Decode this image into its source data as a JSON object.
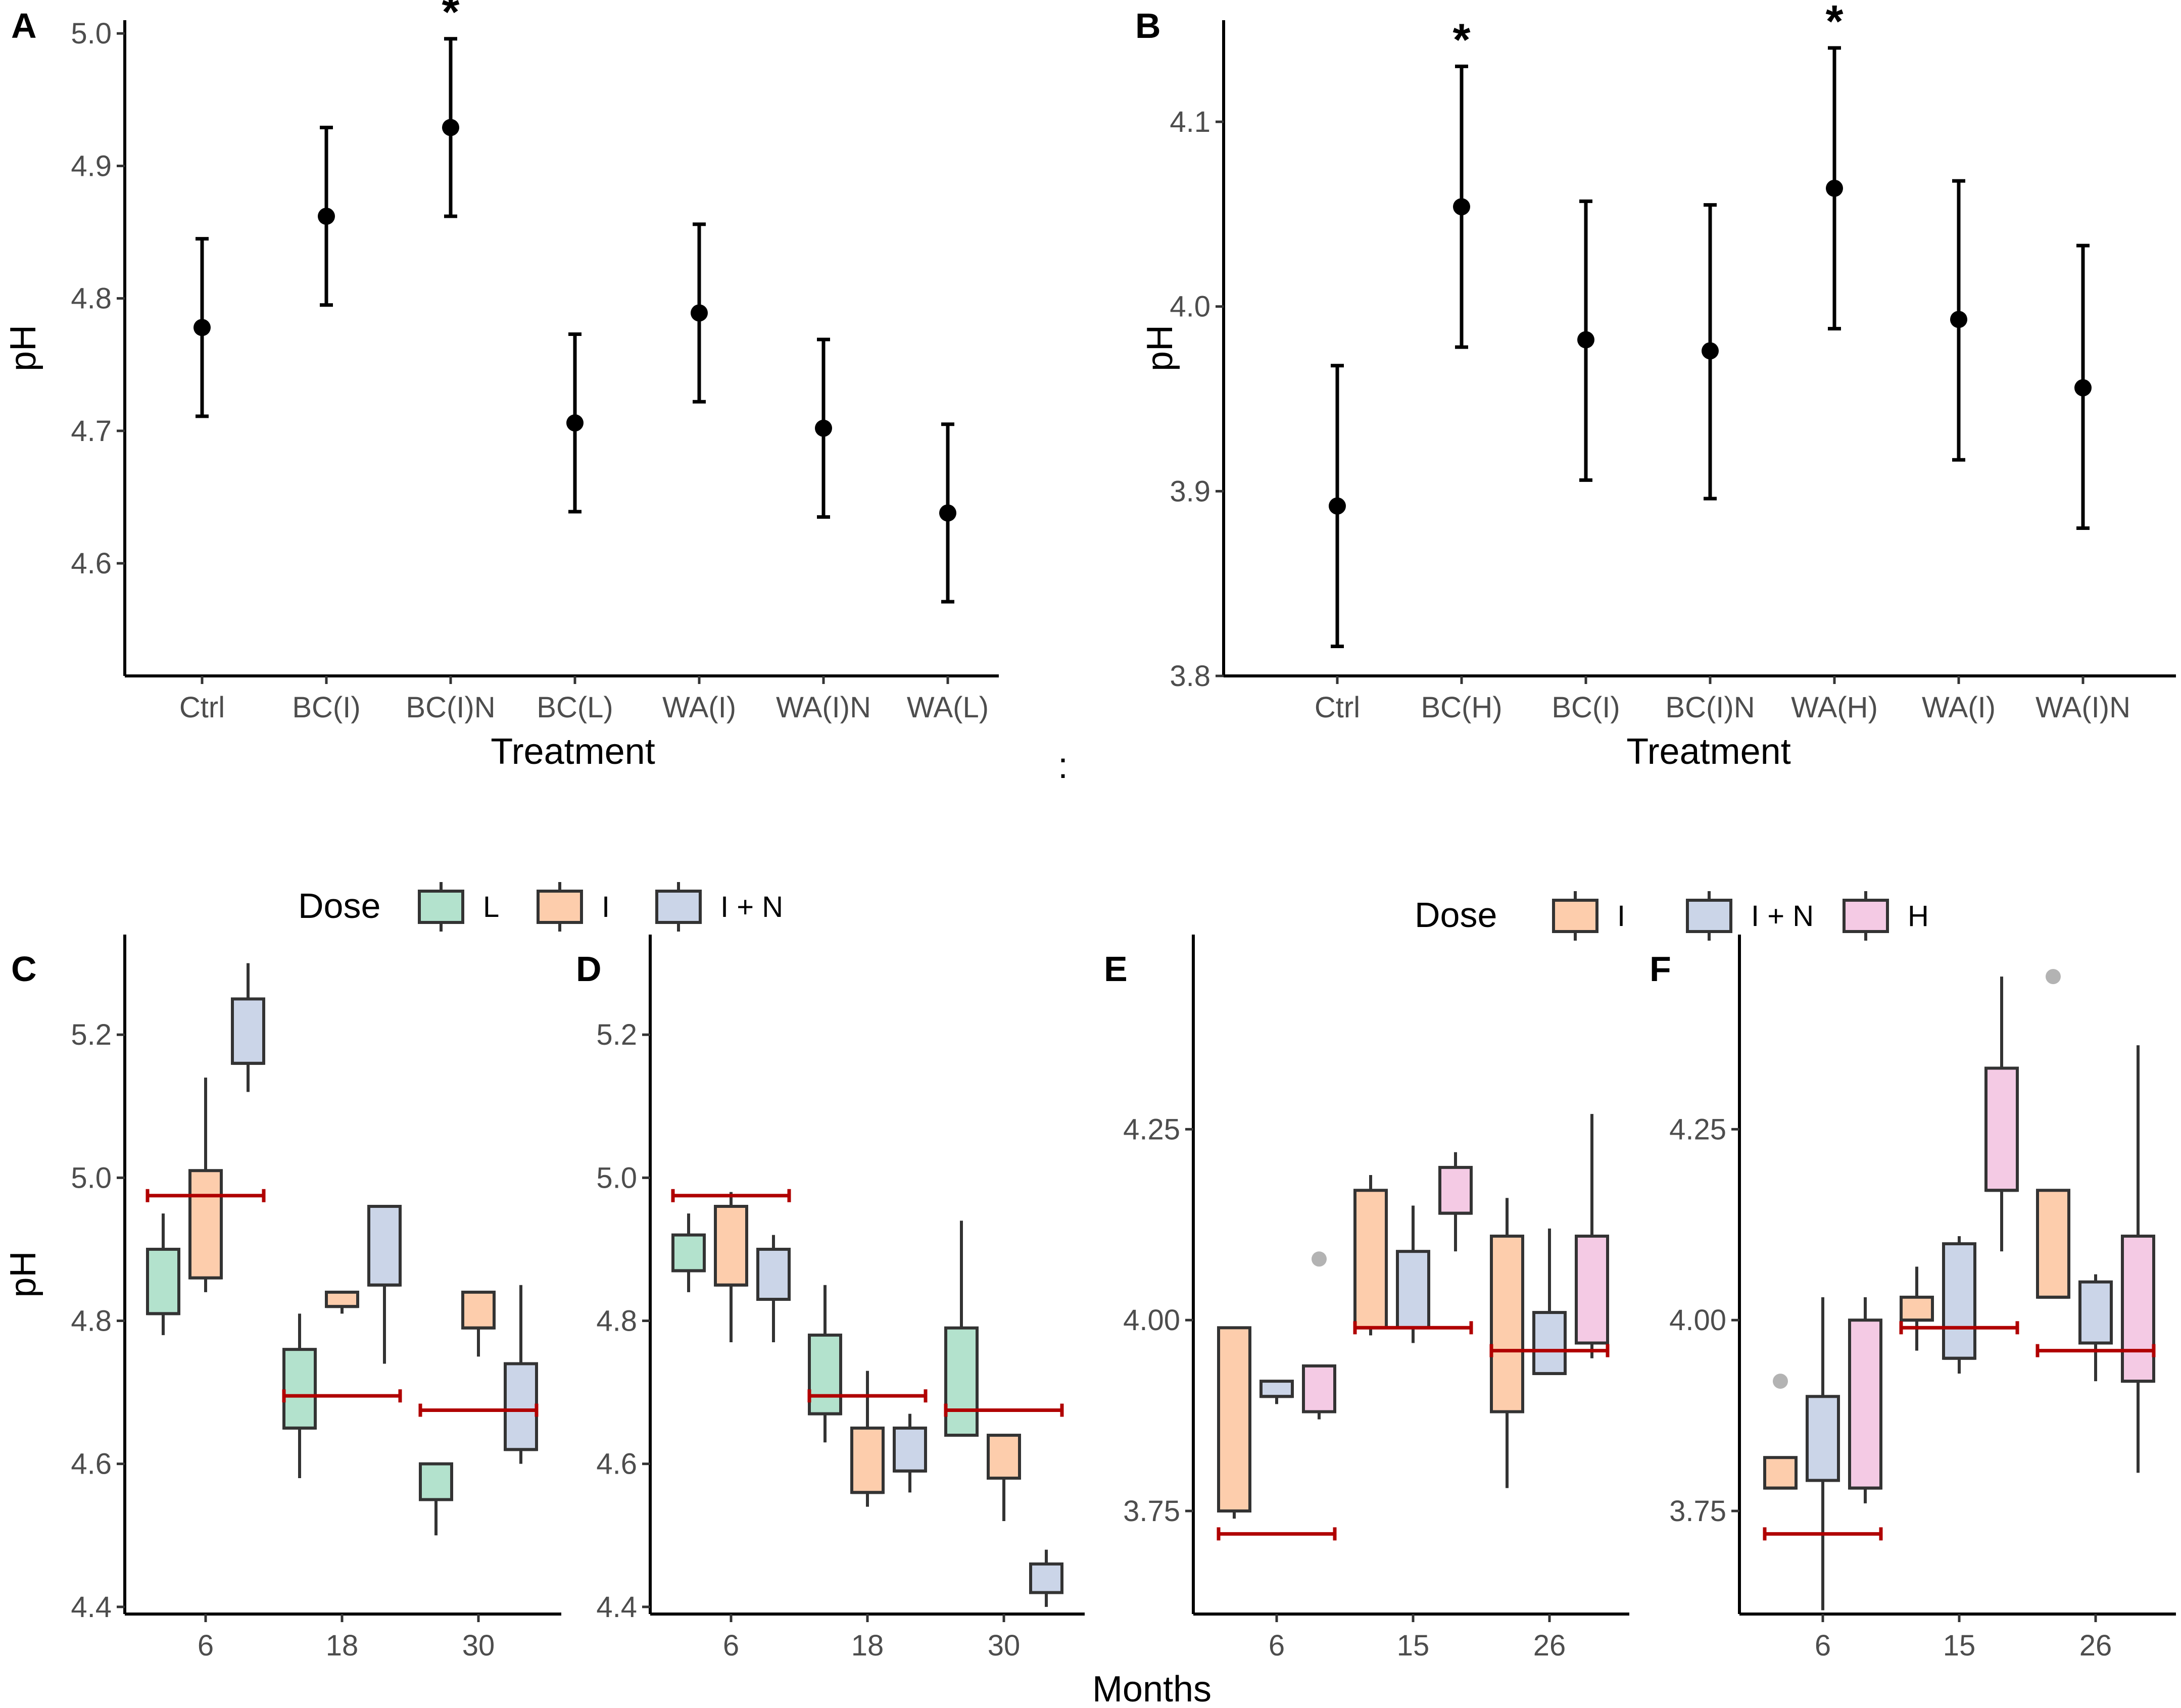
{
  "colors": {
    "L": "#b3e2cd",
    "I": "#fdcdac",
    "I + N": "#cbd5e8",
    "H": "#f4cae4",
    "reference_line": "#b00000",
    "outlier": "#999999"
  },
  "legend_top_left": {
    "title": "Dose",
    "entries": [
      "L",
      "I",
      "I + N"
    ]
  },
  "legend_top_right": {
    "title": "Dose",
    "entries": [
      "I",
      "I + N",
      "H"
    ]
  },
  "shared_x_title": "Months",
  "stray_mark": ":",
  "chart_data": [
    {
      "panel": "A",
      "type": "scatter",
      "xlabel": "Treatment",
      "ylabel": "pH",
      "categories": [
        "Ctrl",
        "BC(I)",
        "BC(I)N",
        "BC(L)",
        "WA(I)",
        "WA(I)N",
        "WA(L)"
      ],
      "values": [
        4.778,
        4.862,
        4.929,
        4.706,
        4.789,
        4.702,
        4.638
      ],
      "lower": [
        4.711,
        4.795,
        4.862,
        4.639,
        4.722,
        4.635,
        4.571
      ],
      "upper": [
        4.845,
        4.929,
        4.996,
        4.773,
        4.856,
        4.769,
        4.705
      ],
      "significant": [
        "BC(I)N"
      ],
      "ylim": [
        4.515,
        5.01
      ],
      "yticks": [
        "4.6",
        "4.7",
        "4.8",
        "4.9",
        "5.0"
      ]
    },
    {
      "panel": "B",
      "type": "scatter",
      "xlabel": "Treatment",
      "ylabel": "pH",
      "categories": [
        "Ctrl",
        "BC(H)",
        "BC(I)",
        "BC(I)N",
        "WA(H)",
        "WA(I)",
        "WA(I)N"
      ],
      "values": [
        3.892,
        4.054,
        3.982,
        3.976,
        4.064,
        3.993,
        3.956
      ],
      "lower": [
        3.816,
        3.978,
        3.906,
        3.896,
        3.988,
        3.917,
        3.88
      ],
      "upper": [
        3.968,
        4.13,
        4.057,
        4.055,
        4.14,
        4.068,
        4.033
      ],
      "significant": [
        "BC(H)",
        "WA(H)"
      ],
      "ylim": [
        3.8,
        4.155
      ],
      "yticks": [
        "3.8",
        "3.9",
        "4.0",
        "4.1"
      ]
    },
    {
      "panel": "C",
      "type": "box",
      "xlabel": "",
      "ylabel": "pH",
      "categories": [
        "6",
        "18",
        "30"
      ],
      "doses": [
        "L",
        "I",
        "I + N"
      ],
      "ylim": [
        4.39,
        5.34
      ],
      "yticks": [
        "4.4",
        "4.6",
        "4.8",
        "5.0",
        "5.2"
      ],
      "boxes": [
        {
          "month": "6",
          "dose": "L",
          "min": 4.78,
          "q1": 4.81,
          "median": 4.81,
          "q3": 4.9,
          "max": 4.95
        },
        {
          "month": "6",
          "dose": "I",
          "min": 4.84,
          "q1": 4.86,
          "median": 4.86,
          "q3": 5.01,
          "max": 5.14
        },
        {
          "month": "6",
          "dose": "I + N",
          "min": 5.12,
          "q1": 5.16,
          "median": 5.16,
          "q3": 5.25,
          "max": 5.3
        },
        {
          "month": "18",
          "dose": "L",
          "min": 4.58,
          "q1": 4.65,
          "median": 4.65,
          "q3": 4.76,
          "max": 4.81
        },
        {
          "month": "18",
          "dose": "I",
          "min": 4.81,
          "q1": 4.82,
          "median": 4.82,
          "q3": 4.84,
          "max": 4.84
        },
        {
          "month": "18",
          "dose": "I + N",
          "min": 4.74,
          "q1": 4.85,
          "median": 4.85,
          "q3": 4.96,
          "max": 4.96
        },
        {
          "month": "30",
          "dose": "L",
          "min": 4.5,
          "q1": 4.55,
          "median": 4.55,
          "q3": 4.6,
          "max": 4.6
        },
        {
          "month": "30",
          "dose": "I",
          "min": 4.75,
          "q1": 4.79,
          "median": 4.79,
          "q3": 4.84,
          "max": 4.84
        },
        {
          "month": "30",
          "dose": "I + N",
          "min": 4.6,
          "q1": 4.62,
          "median": 4.62,
          "q3": 4.74,
          "max": 4.85
        }
      ],
      "reference": [
        {
          "month": "6",
          "value": 4.975
        },
        {
          "month": "18",
          "value": 4.695
        },
        {
          "month": "30",
          "value": 4.675
        }
      ],
      "outliers": []
    },
    {
      "panel": "D",
      "type": "box",
      "xlabel": "",
      "ylabel": "",
      "categories": [
        "6",
        "18",
        "30"
      ],
      "doses": [
        "L",
        "I",
        "I + N"
      ],
      "ylim": [
        4.39,
        5.34
      ],
      "yticks": [
        "4.4",
        "4.6",
        "4.8",
        "5.0",
        "5.2"
      ],
      "boxes": [
        {
          "month": "6",
          "dose": "L",
          "min": 4.84,
          "q1": 4.87,
          "median": 4.87,
          "q3": 4.92,
          "max": 4.95
        },
        {
          "month": "6",
          "dose": "I",
          "min": 4.77,
          "q1": 4.85,
          "median": 4.85,
          "q3": 4.96,
          "max": 4.98
        },
        {
          "month": "6",
          "dose": "I + N",
          "min": 4.77,
          "q1": 4.83,
          "median": 4.83,
          "q3": 4.9,
          "max": 4.92
        },
        {
          "month": "18",
          "dose": "L",
          "min": 4.63,
          "q1": 4.67,
          "median": 4.67,
          "q3": 4.78,
          "max": 4.85
        },
        {
          "month": "18",
          "dose": "I",
          "min": 4.54,
          "q1": 4.56,
          "median": 4.56,
          "q3": 4.65,
          "max": 4.73
        },
        {
          "month": "18",
          "dose": "I + N",
          "min": 4.56,
          "q1": 4.59,
          "median": 4.59,
          "q3": 4.65,
          "max": 4.67
        },
        {
          "month": "30",
          "dose": "L",
          "min": 4.64,
          "q1": 4.64,
          "median": 4.64,
          "q3": 4.79,
          "max": 4.94
        },
        {
          "month": "30",
          "dose": "I",
          "min": 4.52,
          "q1": 4.58,
          "median": 4.58,
          "q3": 4.64,
          "max": 4.64
        },
        {
          "month": "30",
          "dose": "I + N",
          "min": 4.4,
          "q1": 4.42,
          "median": 4.42,
          "q3": 4.46,
          "max": 4.48
        }
      ],
      "reference": [
        {
          "month": "6",
          "value": 4.975
        },
        {
          "month": "18",
          "value": 4.695
        },
        {
          "month": "30",
          "value": 4.675
        }
      ],
      "outliers": []
    },
    {
      "panel": "E",
      "type": "box",
      "xlabel": "",
      "ylabel": "",
      "categories": [
        "6",
        "15",
        "26"
      ],
      "doses": [
        "I",
        "I + N",
        "H"
      ],
      "ylim": [
        3.615,
        4.505
      ],
      "yticks": [
        "3.75",
        "4.00",
        "4.25"
      ],
      "boxes": [
        {
          "month": "6",
          "dose": "I",
          "min": 3.74,
          "q1": 3.75,
          "median": 3.75,
          "q3": 3.99,
          "max": 3.99
        },
        {
          "month": "6",
          "dose": "I + N",
          "min": 3.89,
          "q1": 3.9,
          "median": 3.9,
          "q3": 3.92,
          "max": 3.92
        },
        {
          "month": "6",
          "dose": "H",
          "min": 3.87,
          "q1": 3.88,
          "median": 3.88,
          "q3": 3.94,
          "max": 3.94
        },
        {
          "month": "15",
          "dose": "I",
          "min": 3.98,
          "q1": 3.99,
          "median": 3.99,
          "q3": 4.17,
          "max": 4.19
        },
        {
          "month": "15",
          "dose": "I + N",
          "min": 3.97,
          "q1": 3.99,
          "median": 3.99,
          "q3": 4.09,
          "max": 4.15
        },
        {
          "month": "15",
          "dose": "H",
          "min": 4.09,
          "q1": 4.14,
          "median": 4.14,
          "q3": 4.2,
          "max": 4.22
        },
        {
          "month": "26",
          "dose": "I",
          "min": 3.78,
          "q1": 3.88,
          "median": 3.88,
          "q3": 4.11,
          "max": 4.16
        },
        {
          "month": "26",
          "dose": "I + N",
          "min": 3.93,
          "q1": 3.93,
          "median": 3.93,
          "q3": 4.01,
          "max": 4.12
        },
        {
          "month": "26",
          "dose": "H",
          "min": 3.95,
          "q1": 3.97,
          "median": 3.97,
          "q3": 4.11,
          "max": 4.27
        }
      ],
      "reference": [
        {
          "month": "6",
          "value": 3.72
        },
        {
          "month": "15",
          "value": 3.99
        },
        {
          "month": "26",
          "value": 3.96
        }
      ],
      "outliers": [
        {
          "month": "6",
          "dose": "H",
          "value": 4.08
        }
      ]
    },
    {
      "panel": "F",
      "type": "box",
      "xlabel": "",
      "ylabel": "",
      "categories": [
        "6",
        "15",
        "26"
      ],
      "doses": [
        "I",
        "I + N",
        "H"
      ],
      "ylim": [
        3.615,
        4.505
      ],
      "yticks": [
        "3.75",
        "4.00",
        "4.25"
      ],
      "boxes": [
        {
          "month": "6",
          "dose": "I",
          "min": 3.78,
          "q1": 3.78,
          "median": 3.78,
          "q3": 3.82,
          "max": 3.82
        },
        {
          "month": "6",
          "dose": "I + N",
          "min": 3.62,
          "q1": 3.79,
          "median": 3.79,
          "q3": 3.9,
          "max": 4.03
        },
        {
          "month": "6",
          "dose": "H",
          "min": 3.76,
          "q1": 3.78,
          "median": 3.78,
          "q3": 4.0,
          "max": 4.03
        },
        {
          "month": "15",
          "dose": "I",
          "min": 3.96,
          "q1": 4.0,
          "median": 4.0,
          "q3": 4.03,
          "max": 4.07
        },
        {
          "month": "15",
          "dose": "I + N",
          "min": 3.93,
          "q1": 3.95,
          "median": 3.95,
          "q3": 4.1,
          "max": 4.11
        },
        {
          "month": "15",
          "dose": "H",
          "min": 4.09,
          "q1": 4.17,
          "median": 4.17,
          "q3": 4.33,
          "max": 4.45
        },
        {
          "month": "26",
          "dose": "I",
          "min": 4.03,
          "q1": 4.03,
          "median": 4.03,
          "q3": 4.17,
          "max": 4.17
        },
        {
          "month": "26",
          "dose": "I + N",
          "min": 3.92,
          "q1": 3.97,
          "median": 3.97,
          "q3": 4.05,
          "max": 4.06
        },
        {
          "month": "26",
          "dose": "H",
          "min": 3.8,
          "q1": 3.92,
          "median": 3.92,
          "q3": 4.11,
          "max": 4.36
        }
      ],
      "reference": [
        {
          "month": "6",
          "value": 3.72
        },
        {
          "month": "15",
          "value": 3.99
        },
        {
          "month": "26",
          "value": 3.96
        }
      ],
      "outliers": [
        {
          "month": "6",
          "dose": "I",
          "value": 3.92
        },
        {
          "month": "26",
          "dose": "I",
          "value": 4.45
        }
      ]
    }
  ]
}
